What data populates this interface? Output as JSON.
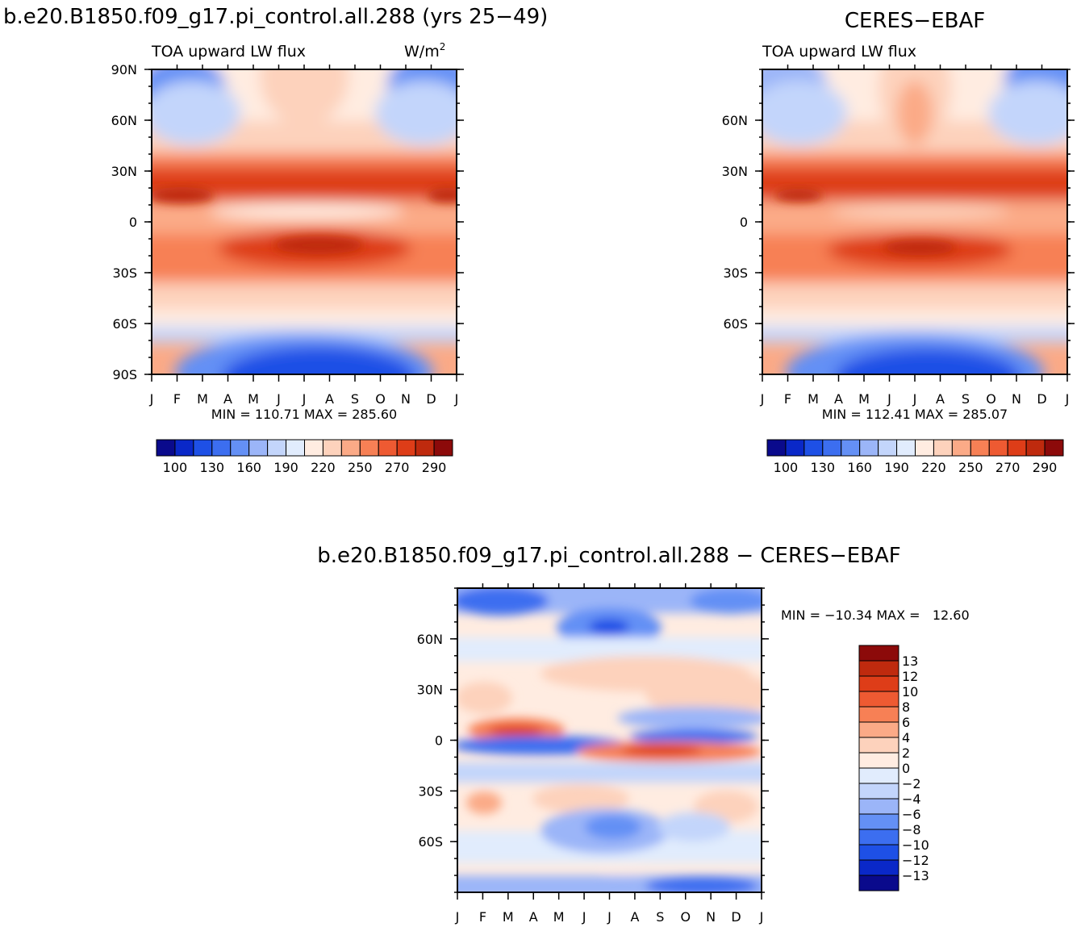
{
  "panel_model": {
    "title": "b.e20.B1850.f09_g17.pi_control.all.288 (yrs 25−49)",
    "subtitle": "TOA upward LW flux",
    "units_text": "W/m",
    "units_sup": "2",
    "y_ticks": [
      "90N",
      "60N",
      "30N",
      "0",
      "30S",
      "60S",
      "90S"
    ],
    "x_ticks": [
      "J",
      "F",
      "M",
      "A",
      "M",
      "J",
      "J",
      "A",
      "S",
      "O",
      "N",
      "D",
      "J"
    ],
    "stats": "MIN = 110.71  MAX = 285.60",
    "colorbar_labels": [
      "100",
      "130",
      "160",
      "190",
      "220",
      "250",
      "270",
      "290"
    ]
  },
  "panel_obs": {
    "title": "CERES−EBAF",
    "subtitle": "TOA upward LW flux",
    "y_ticks": [
      "60N",
      "30N",
      "0",
      "30S",
      "60S"
    ],
    "x_ticks": [
      "J",
      "F",
      "M",
      "A",
      "M",
      "J",
      "J",
      "A",
      "S",
      "O",
      "N",
      "D",
      "J"
    ],
    "stats": "MIN = 112.41  MAX = 285.07",
    "colorbar_labels": [
      "100",
      "130",
      "160",
      "190",
      "220",
      "250",
      "270",
      "290"
    ]
  },
  "panel_diff": {
    "title": "b.e20.B1850.f09_g17.pi_control.all.288 − CERES−EBAF",
    "stats": "MIN = −10.34 MAX =   12.60",
    "y_ticks": [
      "60N",
      "30N",
      "0",
      "30S",
      "60S"
    ],
    "x_ticks": [
      "J",
      "F",
      "M",
      "A",
      "M",
      "J",
      "J",
      "A",
      "S",
      "O",
      "N",
      "D",
      "J"
    ],
    "colorbar_labels": [
      "13",
      "12",
      "10",
      "8",
      "6",
      "4",
      "2",
      "0",
      "−2",
      "−4",
      "−6",
      "−8",
      "−10",
      "−12",
      "−13"
    ]
  },
  "colors": {
    "cmap": [
      "#0a0a8c",
      "#0a28c8",
      "#1e50e6",
      "#3c6ef0",
      "#6490f5",
      "#9bb5f8",
      "#c3d5fb",
      "#e1ecfd",
      "#ffece1",
      "#fdd2bc",
      "#fbaa87",
      "#f78055",
      "#ee5a32",
      "#de3d18",
      "#bf2a0e",
      "#8c0a0a"
    ]
  },
  "chart_data": [
    {
      "type": "heatmap",
      "title": "b.e20.B1850.f09_g17.pi_control.all.288 (yrs 25−49)",
      "subtitle": "TOA upward LW flux",
      "units": "W/m2",
      "x": [
        "J",
        "F",
        "M",
        "A",
        "M",
        "J",
        "J",
        "A",
        "S",
        "O",
        "N",
        "D",
        "J"
      ],
      "y_range": [
        -90,
        90
      ],
      "levels": [
        100,
        115,
        130,
        145,
        160,
        175,
        190,
        205,
        220,
        235,
        250,
        260,
        270,
        280,
        290
      ],
      "min": 110.71,
      "max": 285.6
    },
    {
      "type": "heatmap",
      "title": "CERES−EBAF",
      "subtitle": "TOA upward LW flux",
      "units": "W/m2",
      "x": [
        "J",
        "F",
        "M",
        "A",
        "M",
        "J",
        "J",
        "A",
        "S",
        "O",
        "N",
        "D",
        "J"
      ],
      "y_range": [
        -90,
        90
      ],
      "levels": [
        100,
        115,
        130,
        145,
        160,
        175,
        190,
        205,
        220,
        235,
        250,
        260,
        270,
        280,
        290
      ],
      "min": 112.41,
      "max": 285.07
    },
    {
      "type": "heatmap",
      "title": "b.e20.B1850.f09_g17.pi_control.all.288 − CERES−EBAF",
      "units": "W/m2",
      "x": [
        "J",
        "F",
        "M",
        "A",
        "M",
        "J",
        "J",
        "A",
        "S",
        "O",
        "N",
        "D",
        "J"
      ],
      "y_range": [
        -90,
        90
      ],
      "levels": [
        -13,
        -12,
        -10,
        -8,
        -6,
        -4,
        -2,
        0,
        2,
        4,
        6,
        8,
        10,
        12,
        13
      ],
      "min": -10.34,
      "max": 12.6
    }
  ]
}
